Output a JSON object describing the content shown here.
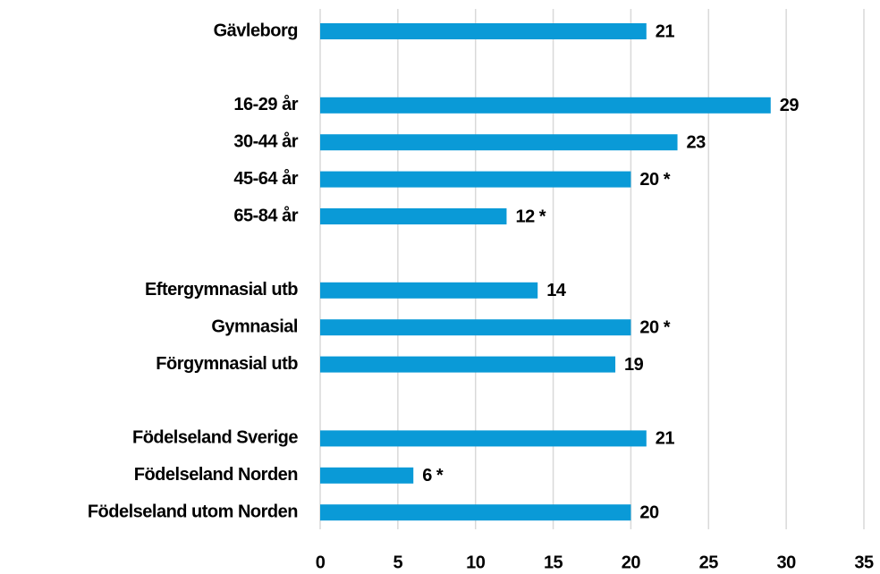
{
  "chart_data": {
    "type": "hbar",
    "categories": [
      "Gävleborg",
      null,
      "16-29 år",
      "30-44 år",
      "45-64 år",
      "65-84 år",
      null,
      "Eftergymnasial utb",
      "Gymnasial",
      "Förgymnasial utb",
      null,
      "Födelseland Sverige",
      "Födelseland Norden",
      "Födelseland utom Norden"
    ],
    "values": [
      21,
      null,
      29,
      23,
      20,
      12,
      null,
      14,
      20,
      19,
      null,
      21,
      6,
      20
    ],
    "value_labels": [
      "21",
      null,
      "29",
      "23",
      "20 *",
      "12 *",
      null,
      "14",
      "20 *",
      "19",
      null,
      "21",
      "6 *",
      "20"
    ],
    "color": "#0a9ad7",
    "xlim": [
      0,
      35
    ],
    "xticks": [
      0,
      5,
      10,
      15,
      20,
      25,
      30,
      35
    ],
    "grid": true
  }
}
